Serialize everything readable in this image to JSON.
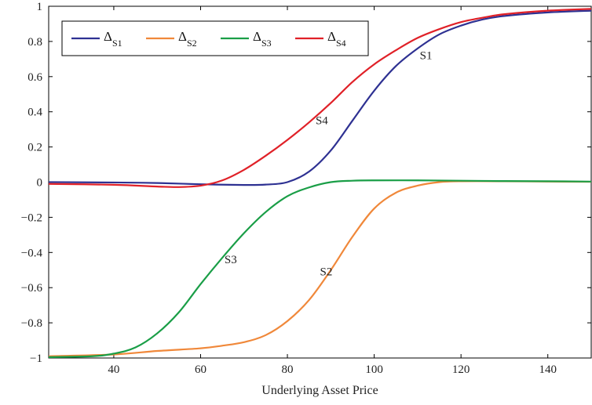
{
  "chart_data": {
    "type": "line",
    "title": "",
    "xlabel": "Underlying Asset Price",
    "ylabel": "",
    "xlim": [
      25,
      150
    ],
    "ylim": [
      -1,
      1
    ],
    "x_ticks": [
      40,
      60,
      80,
      100,
      120,
      140
    ],
    "y_ticks": [
      -1,
      -0.8,
      -0.6,
      -0.4,
      -0.2,
      0,
      0.2,
      0.4,
      0.6,
      0.8,
      1
    ],
    "x_tick_labels": [
      "40",
      "60",
      "80",
      "100",
      "120",
      "140"
    ],
    "y_tick_labels": [
      "−1",
      "−0.8",
      "−0.6",
      "−0.4",
      "−0.2",
      "0",
      "0.2",
      "0.4",
      "0.6",
      "0.8",
      "1"
    ],
    "grid": false,
    "legend_position": "top-left",
    "series": [
      {
        "name": "ΔS1",
        "legend_main": "Δ",
        "legend_sub": "S1",
        "label": "S1",
        "color": "#2e3192",
        "x": [
          25,
          40,
          50,
          60,
          70,
          75,
          80,
          85,
          90,
          95,
          100,
          105,
          110,
          115,
          120,
          125,
          130,
          140,
          150
        ],
        "y": [
          0.0,
          -0.002,
          -0.005,
          -0.012,
          -0.016,
          -0.014,
          0.0,
          0.06,
          0.18,
          0.35,
          0.52,
          0.66,
          0.76,
          0.84,
          0.89,
          0.925,
          0.945,
          0.965,
          0.975
        ]
      },
      {
        "name": "ΔS2",
        "legend_main": "Δ",
        "legend_sub": "S2",
        "label": "S2",
        "color": "#f0883a",
        "x": [
          25,
          40,
          50,
          60,
          65,
          70,
          75,
          80,
          85,
          90,
          95,
          100,
          105,
          110,
          115,
          120,
          130,
          140,
          150
        ],
        "y": [
          -0.99,
          -0.98,
          -0.96,
          -0.945,
          -0.93,
          -0.91,
          -0.87,
          -0.79,
          -0.67,
          -0.5,
          -0.31,
          -0.15,
          -0.06,
          -0.02,
          0.0,
          0.005,
          0.005,
          0.003,
          0.002
        ]
      },
      {
        "name": "ΔS3",
        "legend_main": "Δ",
        "legend_sub": "S3",
        "label": "S3",
        "color": "#1a9e47",
        "x": [
          25,
          35,
          40,
          45,
          50,
          55,
          60,
          65,
          70,
          75,
          80,
          85,
          90,
          95,
          100,
          110,
          120,
          130,
          140,
          150
        ],
        "y": [
          -0.995,
          -0.99,
          -0.975,
          -0.94,
          -0.86,
          -0.74,
          -0.58,
          -0.43,
          -0.29,
          -0.17,
          -0.08,
          -0.03,
          0.0,
          0.008,
          0.01,
          0.01,
          0.008,
          0.006,
          0.005,
          0.003
        ]
      },
      {
        "name": "ΔS4",
        "legend_main": "Δ",
        "legend_sub": "S4",
        "label": "S4",
        "color": "#e02128",
        "x": [
          25,
          40,
          50,
          55,
          60,
          65,
          70,
          75,
          80,
          85,
          90,
          95,
          100,
          105,
          110,
          115,
          120,
          125,
          130,
          140,
          150
        ],
        "y": [
          -0.01,
          -0.015,
          -0.025,
          -0.028,
          -0.02,
          0.01,
          0.07,
          0.15,
          0.24,
          0.34,
          0.45,
          0.57,
          0.67,
          0.75,
          0.82,
          0.87,
          0.91,
          0.935,
          0.955,
          0.975,
          0.985
        ]
      }
    ]
  }
}
